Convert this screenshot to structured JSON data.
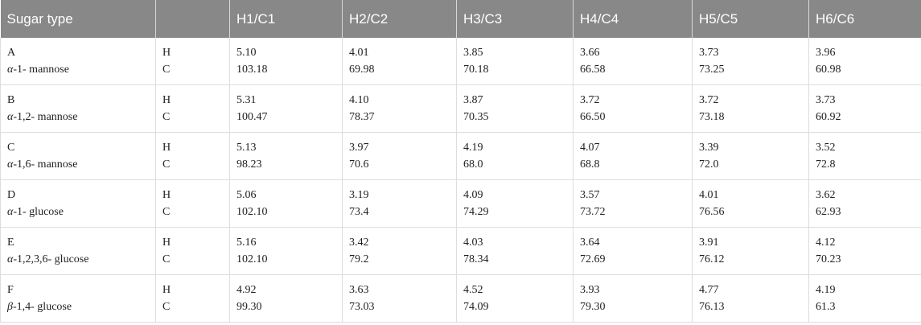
{
  "table": {
    "header": {
      "first": "Sugar type",
      "columns": [
        "H1/C1",
        "H2/C2",
        "H3/C3",
        "H4/C4",
        "H5/C5",
        "H6/C6"
      ]
    },
    "nucleus_labels": [
      "H",
      "C"
    ],
    "rows": [
      {
        "sugar": "A",
        "name": "α-1- mannose",
        "H": [
          "5.10",
          "4.01",
          "3.85",
          "3.66",
          "3.73",
          "3.96"
        ],
        "C": [
          "103.18",
          "69.98",
          "70.18",
          "66.58",
          "73.25",
          "60.98"
        ]
      },
      {
        "sugar": "B",
        "name": "α-1,2- mannose",
        "H": [
          "5.31",
          "4.10",
          "3.87",
          "3.72",
          "3.72",
          "3.73"
        ],
        "C": [
          "100.47",
          "78.37",
          "70.35",
          "66.50",
          "73.18",
          "60.92"
        ]
      },
      {
        "sugar": "C",
        "name": "α-1,6- mannose",
        "H": [
          "5.13",
          "3.97",
          "4.19",
          "4.07",
          "3.39",
          "3.52"
        ],
        "C": [
          "98.23",
          "70.6",
          "68.0",
          "68.8",
          "72.0",
          "72.8"
        ]
      },
      {
        "sugar": "D",
        "name": "α-1- glucose",
        "H": [
          "5.06",
          "3.19",
          "4.09",
          "3.57",
          "4.01",
          "3.62"
        ],
        "C": [
          "102.10",
          "73.4",
          "74.29",
          "73.72",
          "76.56",
          "62.93"
        ]
      },
      {
        "sugar": "E",
        "name": "α-1,2,3,6- glucose",
        "H": [
          "5.16",
          "3.42",
          "4.03",
          "3.64",
          "3.91",
          "4.12"
        ],
        "C": [
          "102.10",
          "79.2",
          "78.34",
          "72.69",
          "76.12",
          "70.23"
        ]
      },
      {
        "sugar": "F",
        "name": "β-1,4- glucose",
        "H": [
          "4.92",
          "3.63",
          "4.52",
          "3.93",
          "4.77",
          "4.19"
        ],
        "C": [
          "99.30",
          "73.03",
          "74.09",
          "79.30",
          "76.13",
          "61.3"
        ]
      }
    ]
  }
}
